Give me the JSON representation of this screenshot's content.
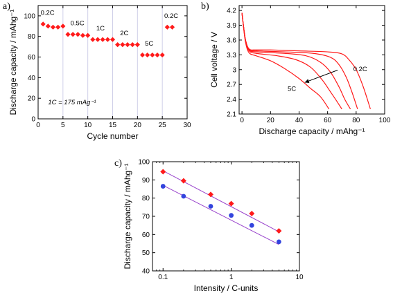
{
  "panels": {
    "a": "a)",
    "b": "b)",
    "c": "c)"
  },
  "colors": {
    "red": "#ff1a1a",
    "blue": "#3344dd",
    "fit_line": "#9944cc",
    "divider": "#cfcfe8",
    "axis": "#000000"
  },
  "chart_data": [
    {
      "id": "a",
      "type": "scatter",
      "xlabel": "Cycle number",
      "ylabel": "Discharge capacity  / mAhg⁻¹",
      "xlim": [
        0,
        30
      ],
      "ylim": [
        0,
        110
      ],
      "xticks": [
        0,
        5,
        10,
        15,
        20,
        25,
        30
      ],
      "yticks": [
        0,
        20,
        40,
        60,
        80,
        100
      ],
      "dividers_x": [
        5,
        10,
        15,
        20,
        25
      ],
      "series": [
        {
          "marker": "diamond",
          "color": "#ff1a1a",
          "x": [
            1,
            2,
            3,
            4,
            5,
            6,
            7,
            8,
            9,
            10,
            11,
            12,
            13,
            14,
            15,
            16,
            17,
            18,
            19,
            20,
            21,
            22,
            23,
            24,
            25,
            26,
            27
          ],
          "y": [
            92,
            90,
            89,
            89,
            90,
            82,
            82,
            82,
            81,
            81,
            77,
            77,
            77,
            77,
            77,
            72,
            72,
            72,
            72,
            72,
            62,
            62,
            62,
            62,
            62,
            89,
            89
          ]
        }
      ],
      "rate_labels": [
        {
          "text": "0.2C",
          "x": 0.5,
          "y": 101
        },
        {
          "text": "0.5C",
          "x": 6.5,
          "y": 91
        },
        {
          "text": "1C",
          "x": 11.7,
          "y": 86
        },
        {
          "text": "2C",
          "x": 16.5,
          "y": 81
        },
        {
          "text": "5C",
          "x": 21.5,
          "y": 71
        },
        {
          "text": "0.2C",
          "x": 25.4,
          "y": 98
        }
      ],
      "note": "1C = 175 mAg⁻¹"
    },
    {
      "id": "b",
      "type": "line",
      "xlabel": "Discharge capacity  / mAhg⁻¹",
      "ylabel": "Cell voltage  / V",
      "xlim": [
        -2,
        100
      ],
      "ylim": [
        2.1,
        4.3
      ],
      "xticks": [
        0,
        20,
        40,
        60,
        80,
        100
      ],
      "yticks": [
        2.1,
        2.4,
        2.7,
        3.0,
        3.3,
        3.6,
        3.9,
        4.2
      ],
      "series": [
        {
          "color": "#ff1a1a",
          "points": [
            [
              0,
              4.15
            ],
            [
              1,
              3.9
            ],
            [
              2.5,
              3.6
            ],
            [
              5,
              3.42
            ],
            [
              10,
              3.4
            ],
            [
              20,
              3.4
            ],
            [
              40,
              3.38
            ],
            [
              60,
              3.36
            ],
            [
              70,
              3.32
            ],
            [
              75,
              3.2
            ],
            [
              80,
              3.0
            ],
            [
              85,
              2.65
            ],
            [
              90,
              2.2
            ]
          ]
        },
        {
          "color": "#ff1a1a",
          "points": [
            [
              0,
              4.15
            ],
            [
              1,
              3.9
            ],
            [
              2.5,
              3.6
            ],
            [
              5,
              3.41
            ],
            [
              10,
              3.38
            ],
            [
              30,
              3.36
            ],
            [
              50,
              3.33
            ],
            [
              62,
              3.25
            ],
            [
              68,
              3.1
            ],
            [
              73,
              2.85
            ],
            [
              77,
              2.55
            ],
            [
              81,
              2.2
            ]
          ]
        },
        {
          "color": "#ff1a1a",
          "points": [
            [
              0,
              4.15
            ],
            [
              1,
              3.9
            ],
            [
              2.5,
              3.6
            ],
            [
              5,
              3.4
            ],
            [
              10,
              3.36
            ],
            [
              30,
              3.33
            ],
            [
              45,
              3.28
            ],
            [
              55,
              3.15
            ],
            [
              62,
              2.95
            ],
            [
              68,
              2.65
            ],
            [
              72,
              2.4
            ],
            [
              76,
              2.2
            ]
          ]
        },
        {
          "color": "#ff1a1a",
          "points": [
            [
              0,
              4.15
            ],
            [
              1,
              3.9
            ],
            [
              2.5,
              3.58
            ],
            [
              5,
              3.38
            ],
            [
              10,
              3.33
            ],
            [
              25,
              3.28
            ],
            [
              38,
              3.2
            ],
            [
              48,
              3.05
            ],
            [
              56,
              2.8
            ],
            [
              62,
              2.55
            ],
            [
              66,
              2.38
            ],
            [
              70,
              2.2
            ]
          ]
        },
        {
          "color": "#ff1a1a",
          "points": [
            [
              0,
              4.15
            ],
            [
              1,
              3.88
            ],
            [
              2.5,
              3.55
            ],
            [
              5,
              3.34
            ],
            [
              10,
              3.28
            ],
            [
              20,
              3.18
            ],
            [
              30,
              3.02
            ],
            [
              40,
              2.82
            ],
            [
              48,
              2.62
            ],
            [
              55,
              2.45
            ],
            [
              61,
              2.2
            ]
          ]
        }
      ],
      "annotations": [
        {
          "text": "0.2C",
          "x": 78,
          "y": 2.97
        },
        {
          "text": "5C",
          "x": 32,
          "y": 2.57
        }
      ],
      "arrow": {
        "from": [
          67,
          2.99
        ],
        "to": [
          44,
          2.74
        ]
      }
    },
    {
      "id": "c",
      "type": "scatter",
      "xscale": "log",
      "xlabel": "Intensity  / C-units",
      "ylabel": "Discharge capacity  / mAhg⁻¹",
      "xlim": [
        0.07,
        10
      ],
      "ylim": [
        40,
        100
      ],
      "xticks": [
        0.1,
        1,
        10
      ],
      "xtick_labels": [
        "0.1",
        "1",
        "10"
      ],
      "yticks": [
        40,
        50,
        60,
        70,
        80,
        90,
        100
      ],
      "series": [
        {
          "marker": "diamond",
          "color": "#ff1a1a",
          "x": [
            0.1,
            0.2,
            0.5,
            1,
            2,
            5
          ],
          "y": [
            94.5,
            89.5,
            82,
            77,
            71.5,
            62
          ]
        },
        {
          "marker": "circle",
          "color": "#3344dd",
          "x": [
            0.1,
            0.2,
            0.5,
            1,
            2,
            5
          ],
          "y": [
            86.5,
            81,
            75.5,
            70.5,
            65,
            56
          ]
        }
      ],
      "fits": [
        {
          "color": "#9944cc",
          "x": [
            0.1,
            5
          ],
          "y": [
            95,
            61.5
          ]
        },
        {
          "color": "#9944cc",
          "x": [
            0.1,
            5
          ],
          "y": [
            87,
            54.5
          ]
        }
      ]
    }
  ]
}
